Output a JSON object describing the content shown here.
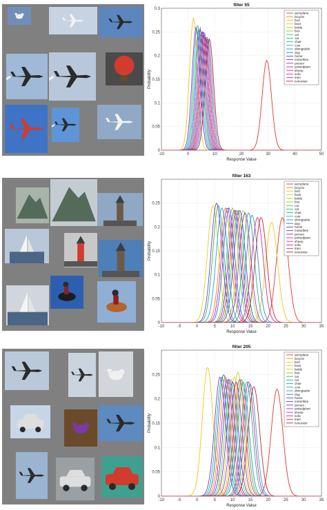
{
  "panels": [
    {
      "image_grid": [
        {
          "icon": "seagull-icon",
          "bg": "#6f8fb8"
        },
        {
          "icon": "airliner-icon",
          "bg": "#c6d3e2"
        },
        {
          "icon": "jet-icon",
          "bg": "#5b86bf"
        },
        {
          "icon": "airshow-jet-icon",
          "bg": "#9fb9d6"
        },
        {
          "icon": "formation-icon",
          "bg": "#b8c8da"
        },
        {
          "icon": "balloon-icon",
          "bg": "#4a4a4a"
        },
        {
          "icon": "red-plane-icon",
          "bg": "#3f73c7"
        },
        {
          "icon": "contrail-plane-icon",
          "bg": "#5d95d8"
        },
        {
          "icon": "airliner-underside-icon",
          "bg": "#8fa9c6"
        }
      ],
      "chart_data": {
        "type": "line",
        "title": "filter 55",
        "xlabel": "Response Value",
        "ylabel": "Probability",
        "xlim": [
          -10,
          50
        ],
        "ylim": [
          0,
          0.3
        ],
        "xticks": [
          "-10",
          "0",
          "10",
          "20",
          "30",
          "40",
          "50"
        ],
        "yticks": [
          "0",
          "0.05",
          "0.1",
          "0.15",
          "0.2",
          "0.25",
          "0.3"
        ],
        "grid": true,
        "legend_position": "top-right",
        "series": [
          {
            "name": "aeroplane",
            "color": "#e8342c",
            "peak_x": 29.5,
            "peak_y": 0.19
          },
          {
            "name": "bicycle",
            "color": "#f4861f",
            "peak_x": 4.5,
            "peak_y": 0.26
          },
          {
            "name": "bird",
            "color": "#f2c41a",
            "peak_x": 2.0,
            "peak_y": 0.28
          },
          {
            "name": "boat",
            "color": "#d6d61f",
            "peak_x": 5.5,
            "peak_y": 0.25
          },
          {
            "name": "bottle",
            "color": "#b7d21c",
            "peak_x": 6.5,
            "peak_y": 0.24
          },
          {
            "name": "bus",
            "color": "#7ccc2a",
            "peak_x": 5.0,
            "peak_y": 0.25
          },
          {
            "name": "car",
            "color": "#39c13b",
            "peak_x": 6.0,
            "peak_y": 0.245
          },
          {
            "name": "cat",
            "color": "#22b868",
            "peak_x": 4.0,
            "peak_y": 0.255
          },
          {
            "name": "chair",
            "color": "#1fb3a2",
            "peak_x": 7.0,
            "peak_y": 0.24
          },
          {
            "name": "cow",
            "color": "#26a8cc",
            "peak_x": 3.5,
            "peak_y": 0.265
          },
          {
            "name": "diningtable",
            "color": "#2a8fd6",
            "peak_x": 7.5,
            "peak_y": 0.235
          },
          {
            "name": "dog",
            "color": "#2f6fd9",
            "peak_x": 4.5,
            "peak_y": 0.255
          },
          {
            "name": "horse",
            "color": "#3a4fd6",
            "peak_x": 6.0,
            "peak_y": 0.25
          },
          {
            "name": "motorbike",
            "color": "#5a3ed1",
            "peak_x": 5.5,
            "peak_y": 0.25
          },
          {
            "name": "person",
            "color": "#7d38cc",
            "peak_x": 3.0,
            "peak_y": 0.26
          },
          {
            "name": "pottedplant",
            "color": "#a332c4",
            "peak_x": 6.5,
            "peak_y": 0.24
          },
          {
            "name": "sheep",
            "color": "#c62eb3",
            "peak_x": 5.0,
            "peak_y": 0.25
          },
          {
            "name": "sofa",
            "color": "#d92e8c",
            "peak_x": 7.0,
            "peak_y": 0.235
          },
          {
            "name": "train",
            "color": "#de3062",
            "peak_x": 6.0,
            "peak_y": 0.245
          },
          {
            "name": "tvmonitor",
            "color": "#c8242f",
            "peak_x": 8.0,
            "peak_y": 0.235
          }
        ]
      }
    },
    {
      "image_grid": [
        {
          "icon": "mountain-icon",
          "bg": "#a9b4a8"
        },
        {
          "icon": "sea-rock-icon",
          "bg": "#c4ccd2"
        },
        {
          "icon": "tower-icon",
          "bg": "#8fa8c4"
        },
        {
          "icon": "sailboat-icon",
          "bg": "#b8c8d8"
        },
        {
          "icon": "lighthouse-icon",
          "bg": "#c8c8c8"
        },
        {
          "icon": "dome-icon",
          "bg": "#4d7fb8"
        },
        {
          "icon": "sail-icon",
          "bg": "#d0d6dc"
        },
        {
          "icon": "skier-icon",
          "bg": "#2d5fb0"
        },
        {
          "icon": "rider-horse-icon",
          "bg": "#8fb0d4"
        }
      ],
      "chart_data": {
        "type": "line",
        "title": "filter 163",
        "xlabel": "Response Value",
        "ylabel": "Probability",
        "xlim": [
          -10,
          35
        ],
        "ylim": [
          0,
          0.3
        ],
        "xticks": [
          "-10",
          "-5",
          "0",
          "5",
          "10",
          "15",
          "20",
          "25",
          "30",
          "35"
        ],
        "yticks": [
          "0",
          "0.05",
          "0.1",
          "0.15",
          "0.2",
          "0.25"
        ],
        "grid": true,
        "legend_position": "top-right",
        "series": [
          {
            "name": "aeroplane",
            "color": "#e8342c",
            "peak_x": 24.0,
            "peak_y": 0.22
          },
          {
            "name": "bicycle",
            "color": "#f4861f",
            "peak_x": 8.0,
            "peak_y": 0.24
          },
          {
            "name": "bird",
            "color": "#f2c41a",
            "peak_x": 21.0,
            "peak_y": 0.21
          },
          {
            "name": "boat",
            "color": "#d6d61f",
            "peak_x": 4.5,
            "peak_y": 0.245
          },
          {
            "name": "bottle",
            "color": "#b7d21c",
            "peak_x": 13.0,
            "peak_y": 0.235
          },
          {
            "name": "bus",
            "color": "#7ccc2a",
            "peak_x": 10.0,
            "peak_y": 0.24
          },
          {
            "name": "car",
            "color": "#39c13b",
            "peak_x": 11.5,
            "peak_y": 0.235
          },
          {
            "name": "cat",
            "color": "#22b868",
            "peak_x": 6.0,
            "peak_y": 0.245
          },
          {
            "name": "chair",
            "color": "#1fb3a2",
            "peak_x": 14.5,
            "peak_y": 0.23
          },
          {
            "name": "cow",
            "color": "#26a8cc",
            "peak_x": 7.0,
            "peak_y": 0.24
          },
          {
            "name": "diningtable",
            "color": "#2a8fd6",
            "peak_x": 15.5,
            "peak_y": 0.225
          },
          {
            "name": "dog",
            "color": "#2f6fd9",
            "peak_x": 9.0,
            "peak_y": 0.24
          },
          {
            "name": "horse",
            "color": "#3a4fd6",
            "peak_x": 12.0,
            "peak_y": 0.235
          },
          {
            "name": "motorbike",
            "color": "#5a3ed1",
            "peak_x": 10.5,
            "peak_y": 0.235
          },
          {
            "name": "person",
            "color": "#7d38cc",
            "peak_x": 5.5,
            "peak_y": 0.25
          },
          {
            "name": "pottedplant",
            "color": "#a332c4",
            "peak_x": 13.5,
            "peak_y": 0.23
          },
          {
            "name": "sheep",
            "color": "#c62eb3",
            "peak_x": 8.5,
            "peak_y": 0.24
          },
          {
            "name": "sofa",
            "color": "#d92e8c",
            "peak_x": 17.0,
            "peak_y": 0.22
          },
          {
            "name": "train",
            "color": "#de3062",
            "peak_x": 11.0,
            "peak_y": 0.235
          },
          {
            "name": "tvmonitor",
            "color": "#c8242f",
            "peak_x": 18.0,
            "peak_y": 0.22
          }
        ]
      }
    },
    {
      "image_grid": [
        {
          "icon": "fighter-jet-icon",
          "bg": "#b9c9da"
        },
        {
          "icon": "jet-nose-icon",
          "bg": "#c9d4de"
        },
        {
          "icon": "bird-closeup-icon",
          "bg": "#d2d6da"
        },
        {
          "icon": "car-front-icon",
          "bg": "#c6d6e6"
        },
        {
          "icon": "purple-bird-icon",
          "bg": "#6a4a2a"
        },
        {
          "icon": "plane-sky-icon",
          "bg": "#5d8ac0"
        },
        {
          "icon": "jet-low-icon",
          "bg": "#9ab4d2"
        },
        {
          "icon": "car-street-icon",
          "bg": "#9aa0a4"
        },
        {
          "icon": "red-car-icon",
          "bg": "#3fa08f"
        }
      ],
      "chart_data": {
        "type": "line",
        "title": "filter 205",
        "xlabel": "Response Value",
        "ylabel": "Probability",
        "xlim": [
          -10,
          35
        ],
        "ylim": [
          0,
          0.3
        ],
        "xticks": [
          "-10",
          "-5",
          "0",
          "5",
          "10",
          "15",
          "20",
          "25",
          "30",
          "35"
        ],
        "yticks": [
          "0",
          "0.05",
          "0.1",
          "0.15",
          "0.2",
          "0.25"
        ],
        "grid": true,
        "legend_position": "top-right",
        "series": [
          {
            "name": "aeroplane",
            "color": "#e8342c",
            "peak_x": 22.5,
            "peak_y": 0.22
          },
          {
            "name": "bicycle",
            "color": "#f4861f",
            "peak_x": 8.0,
            "peak_y": 0.245
          },
          {
            "name": "bird",
            "color": "#f2c41a",
            "peak_x": 3.0,
            "peak_y": 0.265
          },
          {
            "name": "boat",
            "color": "#d6d61f",
            "peak_x": 10.5,
            "peak_y": 0.245
          },
          {
            "name": "bottle",
            "color": "#b7d21c",
            "peak_x": 11.5,
            "peak_y": 0.255
          },
          {
            "name": "bus",
            "color": "#7ccc2a",
            "peak_x": 9.5,
            "peak_y": 0.24
          },
          {
            "name": "car",
            "color": "#39c13b",
            "peak_x": 12.5,
            "peak_y": 0.24
          },
          {
            "name": "cat",
            "color": "#22b868",
            "peak_x": 7.0,
            "peak_y": 0.245
          },
          {
            "name": "chair",
            "color": "#1fb3a2",
            "peak_x": 14.0,
            "peak_y": 0.235
          },
          {
            "name": "cow",
            "color": "#26a8cc",
            "peak_x": 15.0,
            "peak_y": 0.23
          },
          {
            "name": "diningtable",
            "color": "#2a8fd6",
            "peak_x": 13.0,
            "peak_y": 0.235
          },
          {
            "name": "dog",
            "color": "#2f6fd9",
            "peak_x": 7.5,
            "peak_y": 0.25
          },
          {
            "name": "horse",
            "color": "#3a4fd6",
            "peak_x": 9.0,
            "peak_y": 0.24
          },
          {
            "name": "motorbike",
            "color": "#5a3ed1",
            "peak_x": 10.0,
            "peak_y": 0.235
          },
          {
            "name": "person",
            "color": "#7d38cc",
            "peak_x": 6.5,
            "peak_y": 0.245
          },
          {
            "name": "pottedplant",
            "color": "#a332c4",
            "peak_x": 11.0,
            "peak_y": 0.235
          },
          {
            "name": "sheep",
            "color": "#c62eb3",
            "peak_x": 8.5,
            "peak_y": 0.24
          },
          {
            "name": "sofa",
            "color": "#d92e8c",
            "peak_x": 14.5,
            "peak_y": 0.235
          },
          {
            "name": "train",
            "color": "#de3062",
            "peak_x": 12.0,
            "peak_y": 0.24
          },
          {
            "name": "tvmonitor",
            "color": "#c8242f",
            "peak_x": 16.0,
            "peak_y": 0.225
          }
        ]
      }
    }
  ]
}
